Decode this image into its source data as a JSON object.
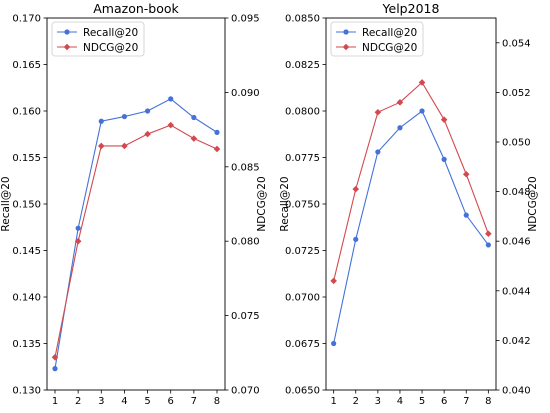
{
  "colors": {
    "recall": "#4472d8",
    "ndcg": "#d24a4f",
    "legend_border": "#cccccc"
  },
  "chart_data": [
    {
      "type": "line",
      "title": "Amazon-book",
      "x": [
        1,
        2,
        3,
        4,
        5,
        6,
        7,
        8
      ],
      "xlim": [
        1,
        8
      ],
      "ylabel": "Recall@20",
      "y2label": "NDCG@20",
      "ylim": [
        0.13,
        0.17
      ],
      "y2lim": [
        0.07,
        0.095
      ],
      "yticks": [
        "0.130",
        "0.135",
        "0.140",
        "0.145",
        "0.150",
        "0.155",
        "0.160",
        "0.165",
        "0.170"
      ],
      "y2ticks": [
        "0.070",
        "0.075",
        "0.080",
        "0.085",
        "0.090",
        "0.095"
      ],
      "grid": false,
      "legend": "top-left",
      "series": [
        {
          "name": "Recall@20",
          "axis": "left",
          "marker": "circle",
          "values": [
            0.1323,
            0.1474,
            0.1589,
            0.1594,
            0.16,
            0.1613,
            0.1593,
            0.1577
          ]
        },
        {
          "name": "NDCG@20",
          "axis": "right",
          "marker": "diamond",
          "values": [
            0.0722,
            0.08,
            0.0864,
            0.0864,
            0.0872,
            0.0878,
            0.0869,
            0.0862
          ]
        }
      ]
    },
    {
      "type": "line",
      "title": "Yelp2018",
      "x": [
        1,
        2,
        3,
        4,
        5,
        6,
        7,
        8
      ],
      "xlim": [
        1,
        8
      ],
      "ylabel": "Recall@20",
      "y2label": "NDCG@20",
      "ylim": [
        0.065,
        0.085
      ],
      "y2lim": [
        0.04,
        0.055
      ],
      "yticks": [
        "0.0650",
        "0.0675",
        "0.0700",
        "0.0725",
        "0.0750",
        "0.0775",
        "0.0800",
        "0.0825",
        "0.0850"
      ],
      "y2ticks": [
        "0.040",
        "0.042",
        "0.044",
        "0.046",
        "0.048",
        "0.050",
        "0.052",
        "0.054"
      ],
      "grid": false,
      "legend": "top-left",
      "series": [
        {
          "name": "Recall@20",
          "axis": "left",
          "marker": "circle",
          "values": [
            0.0675,
            0.0731,
            0.0778,
            0.0791,
            0.08,
            0.0774,
            0.0744,
            0.0728
          ]
        },
        {
          "name": "NDCG@20",
          "axis": "right",
          "marker": "diamond",
          "values": [
            0.0444,
            0.0481,
            0.0512,
            0.0516,
            0.0524,
            0.0509,
            0.0487,
            0.0463
          ]
        }
      ]
    }
  ]
}
